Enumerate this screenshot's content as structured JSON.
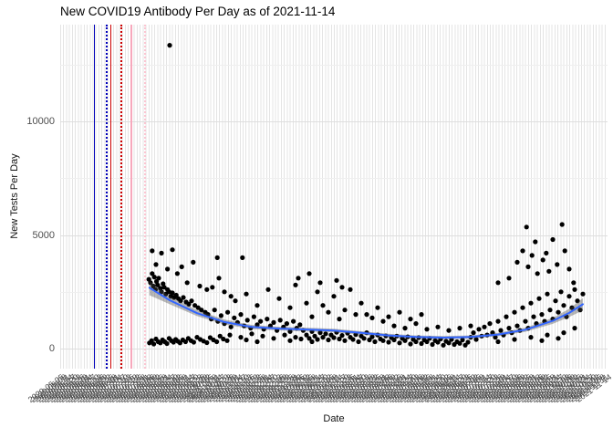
{
  "title": "New COVID19 Antibody Per Day as of 2021-11-14",
  "chart_data": {
    "type": "scatter",
    "title": "New COVID19 Antibody Per Day as of 2021-11-14",
    "xlabel": "Date",
    "ylabel": "New Tests Per Day",
    "grid": "on",
    "legend": "none",
    "point_color": "#000000",
    "smooth_color": "#3366ff",
    "ribbon_color": "rgba(70,70,70,0.38)",
    "y_ticks": [
      0,
      5000,
      10000
    ],
    "y_minor_ticks": [
      2500,
      7500,
      12500
    ],
    "ylim": [
      -620,
      14260
    ],
    "x_ticks": {
      "start": "2020-05-05",
      "end": "2021-11-14",
      "step_days": 3,
      "format": "YYYY-MM-DD"
    },
    "reference_lines": [
      {
        "name": "vline-blue-solid",
        "f": 0.0617,
        "color": "#0000bb",
        "style": "solid",
        "width": 1.5
      },
      {
        "name": "vline-blue-dotted",
        "f": 0.0833,
        "color": "#0000bb",
        "style": "dotted",
        "width": 2
      },
      {
        "name": "vline-red-solid",
        "f": 0.0917,
        "color": "#cc0000",
        "style": "solid",
        "width": 1.5
      },
      {
        "name": "vline-red-dotted",
        "f": 0.11,
        "color": "#cc0000",
        "style": "dotted",
        "width": 2
      },
      {
        "name": "vline-pink-solid",
        "f": 0.129,
        "color": "#f7a8bc",
        "style": "solid",
        "width": 2
      },
      {
        "name": "vline-pink-dotted",
        "f": 0.153,
        "color": "#fbc6d2",
        "style": "dotted",
        "width": 2
      }
    ],
    "smooth": [
      [
        0.163,
        2680
      ],
      [
        0.2,
        2130
      ],
      [
        0.25,
        1560
      ],
      [
        0.3,
        1170
      ],
      [
        0.35,
        950
      ],
      [
        0.4,
        880
      ],
      [
        0.45,
        840
      ],
      [
        0.5,
        790
      ],
      [
        0.55,
        690
      ],
      [
        0.6,
        580
      ],
      [
        0.65,
        510
      ],
      [
        0.7,
        480
      ],
      [
        0.75,
        510
      ],
      [
        0.8,
        620
      ],
      [
        0.85,
        830
      ],
      [
        0.9,
        1220
      ],
      [
        0.93,
        1570
      ],
      [
        0.955,
        1950
      ]
    ],
    "ribbon": [
      [
        0.163,
        2350,
        2980
      ],
      [
        0.2,
        1950,
        2300
      ],
      [
        0.25,
        1430,
        1690
      ],
      [
        0.3,
        1060,
        1280
      ],
      [
        0.35,
        860,
        1040
      ],
      [
        0.4,
        800,
        960
      ],
      [
        0.45,
        760,
        920
      ],
      [
        0.5,
        710,
        870
      ],
      [
        0.55,
        615,
        765
      ],
      [
        0.6,
        505,
        655
      ],
      [
        0.65,
        440,
        580
      ],
      [
        0.7,
        410,
        550
      ],
      [
        0.75,
        440,
        580
      ],
      [
        0.8,
        545,
        695
      ],
      [
        0.85,
        740,
        920
      ],
      [
        0.9,
        1090,
        1350
      ],
      [
        0.93,
        1390,
        1750
      ],
      [
        0.955,
        1680,
        2220
      ]
    ],
    "points": [
      [
        0.162,
        3050
      ],
      [
        0.165,
        2900
      ],
      [
        0.168,
        3300
      ],
      [
        0.17,
        2750
      ],
      [
        0.172,
        3150
      ],
      [
        0.174,
        2600
      ],
      [
        0.176,
        2950
      ],
      [
        0.178,
        2800
      ],
      [
        0.18,
        3100
      ],
      [
        0.183,
        2650
      ],
      [
        0.185,
        2500
      ],
      [
        0.188,
        2850
      ],
      [
        0.19,
        2700
      ],
      [
        0.193,
        2400
      ],
      [
        0.196,
        2600
      ],
      [
        0.199,
        2500
      ],
      [
        0.202,
        2300
      ],
      [
        0.205,
        2450
      ],
      [
        0.208,
        2250
      ],
      [
        0.212,
        2350
      ],
      [
        0.216,
        2200
      ],
      [
        0.22,
        2100
      ],
      [
        0.225,
        2250
      ],
      [
        0.23,
        2050
      ],
      [
        0.235,
        1950
      ],
      [
        0.24,
        2100
      ],
      [
        0.246,
        1900
      ],
      [
        0.252,
        1800
      ],
      [
        0.258,
        1700
      ],
      [
        0.265,
        1600
      ],
      [
        0.168,
        4300
      ],
      [
        0.175,
        3700
      ],
      [
        0.185,
        4200
      ],
      [
        0.196,
        3500
      ],
      [
        0.205,
        4350
      ],
      [
        0.214,
        3300
      ],
      [
        0.222,
        3600
      ],
      [
        0.232,
        2900
      ],
      [
        0.243,
        3800
      ],
      [
        0.255,
        2750
      ],
      [
        0.268,
        2600
      ],
      [
        0.278,
        2700
      ],
      [
        0.287,
        4000
      ],
      [
        0.29,
        3100
      ],
      [
        0.3,
        2500
      ],
      [
        0.312,
        2300
      ],
      [
        0.333,
        4000
      ],
      [
        0.163,
        250
      ],
      [
        0.167,
        350
      ],
      [
        0.171,
        200
      ],
      [
        0.175,
        420
      ],
      [
        0.179,
        300
      ],
      [
        0.183,
        250
      ],
      [
        0.187,
        380
      ],
      [
        0.191,
        300
      ],
      [
        0.195,
        220
      ],
      [
        0.199,
        450
      ],
      [
        0.203,
        350
      ],
      [
        0.207,
        280
      ],
      [
        0.211,
        400
      ],
      [
        0.215,
        320
      ],
      [
        0.219,
        250
      ],
      [
        0.224,
        380
      ],
      [
        0.229,
        300
      ],
      [
        0.234,
        450
      ],
      [
        0.239,
        350
      ],
      [
        0.244,
        280
      ],
      [
        0.25,
        500
      ],
      [
        0.256,
        400
      ],
      [
        0.262,
        330
      ],
      [
        0.268,
        260
      ],
      [
        0.274,
        480
      ],
      [
        0.28,
        380
      ],
      [
        0.286,
        300
      ],
      [
        0.292,
        550
      ],
      [
        0.298,
        420
      ],
      [
        0.305,
        350
      ],
      [
        0.2,
        13350
      ],
      [
        0.27,
        1500
      ],
      [
        0.276,
        1300
      ],
      [
        0.282,
        1700
      ],
      [
        0.288,
        1200
      ],
      [
        0.294,
        1450
      ],
      [
        0.3,
        1100
      ],
      [
        0.306,
        1600
      ],
      [
        0.312,
        950
      ],
      [
        0.318,
        1350
      ],
      [
        0.324,
        1150
      ],
      [
        0.33,
        1500
      ],
      [
        0.336,
        1000
      ],
      [
        0.342,
        1250
      ],
      [
        0.348,
        900
      ],
      [
        0.354,
        1400
      ],
      [
        0.36,
        1050
      ],
      [
        0.366,
        1200
      ],
      [
        0.372,
        850
      ],
      [
        0.378,
        1300
      ],
      [
        0.384,
        1000
      ],
      [
        0.39,
        1150
      ],
      [
        0.396,
        800
      ],
      [
        0.402,
        1250
      ],
      [
        0.408,
        950
      ],
      [
        0.414,
        1100
      ],
      [
        0.42,
        750
      ],
      [
        0.426,
        1200
      ],
      [
        0.432,
        900
      ],
      [
        0.438,
        1050
      ],
      [
        0.444,
        800
      ],
      [
        0.32,
        2100
      ],
      [
        0.34,
        2400
      ],
      [
        0.36,
        1900
      ],
      [
        0.38,
        2600
      ],
      [
        0.4,
        2200
      ],
      [
        0.42,
        1800
      ],
      [
        0.43,
        2800
      ],
      [
        0.45,
        2000
      ],
      [
        0.47,
        2500
      ],
      [
        0.48,
        1900
      ],
      [
        0.5,
        2300
      ],
      [
        0.52,
        1700
      ],
      [
        0.53,
        2600
      ],
      [
        0.55,
        2000
      ],
      [
        0.56,
        1500
      ],
      [
        0.58,
        1800
      ],
      [
        0.6,
        1400
      ],
      [
        0.62,
        1600
      ],
      [
        0.64,
        1300
      ],
      [
        0.66,
        1500
      ],
      [
        0.435,
        3100
      ],
      [
        0.455,
        3300
      ],
      [
        0.475,
        2900
      ],
      [
        0.505,
        3000
      ],
      [
        0.515,
        2700
      ],
      [
        0.31,
        600
      ],
      [
        0.33,
        500
      ],
      [
        0.35,
        650
      ],
      [
        0.37,
        550
      ],
      [
        0.39,
        450
      ],
      [
        0.41,
        600
      ],
      [
        0.43,
        500
      ],
      [
        0.34,
        380
      ],
      [
        0.36,
        300
      ],
      [
        0.42,
        350
      ],
      [
        0.44,
        420
      ],
      [
        0.46,
        300
      ],
      [
        0.46,
        1400
      ],
      [
        0.49,
        1600
      ],
      [
        0.51,
        1300
      ],
      [
        0.54,
        1500
      ],
      [
        0.57,
        1350
      ],
      [
        0.59,
        1200
      ],
      [
        0.45,
        600
      ],
      [
        0.455,
        450
      ],
      [
        0.46,
        750
      ],
      [
        0.465,
        550
      ],
      [
        0.47,
        400
      ],
      [
        0.475,
        700
      ],
      [
        0.48,
        500
      ],
      [
        0.485,
        650
      ],
      [
        0.49,
        380
      ],
      [
        0.495,
        600
      ],
      [
        0.5,
        480
      ],
      [
        0.505,
        720
      ],
      [
        0.51,
        420
      ],
      [
        0.515,
        580
      ],
      [
        0.52,
        350
      ],
      [
        0.525,
        680
      ],
      [
        0.53,
        500
      ],
      [
        0.535,
        400
      ],
      [
        0.54,
        620
      ],
      [
        0.545,
        300
      ],
      [
        0.55,
        550
      ],
      [
        0.555,
        450
      ],
      [
        0.56,
        700
      ],
      [
        0.565,
        380
      ],
      [
        0.57,
        520
      ],
      [
        0.575,
        300
      ],
      [
        0.58,
        600
      ],
      [
        0.585,
        420
      ],
      [
        0.59,
        350
      ],
      [
        0.595,
        560
      ],
      [
        0.6,
        280
      ],
      [
        0.605,
        480
      ],
      [
        0.61,
        380
      ],
      [
        0.615,
        550
      ],
      [
        0.62,
        250
      ],
      [
        0.625,
        450
      ],
      [
        0.63,
        350
      ],
      [
        0.635,
        520
      ],
      [
        0.64,
        200
      ],
      [
        0.645,
        400
      ],
      [
        0.65,
        300
      ],
      [
        0.655,
        480
      ],
      [
        0.66,
        220
      ],
      [
        0.665,
        380
      ],
      [
        0.67,
        300
      ],
      [
        0.675,
        450
      ],
      [
        0.68,
        180
      ],
      [
        0.685,
        350
      ],
      [
        0.69,
        280
      ],
      [
        0.695,
        420
      ],
      [
        0.7,
        150
      ],
      [
        0.705,
        320
      ],
      [
        0.71,
        250
      ],
      [
        0.715,
        400
      ],
      [
        0.72,
        180
      ],
      [
        0.725,
        300
      ],
      [
        0.73,
        230
      ],
      [
        0.735,
        380
      ],
      [
        0.74,
        150
      ],
      [
        0.745,
        280
      ],
      [
        0.61,
        1000
      ],
      [
        0.63,
        900
      ],
      [
        0.65,
        1100
      ],
      [
        0.67,
        850
      ],
      [
        0.69,
        950
      ],
      [
        0.71,
        800
      ],
      [
        0.73,
        900
      ],
      [
        0.75,
        1000
      ],
      [
        0.75,
        500
      ],
      [
        0.755,
        700
      ],
      [
        0.76,
        400
      ],
      [
        0.765,
        850
      ],
      [
        0.77,
        550
      ],
      [
        0.775,
        950
      ],
      [
        0.78,
        600
      ],
      [
        0.785,
        1100
      ],
      [
        0.79,
        700
      ],
      [
        0.795,
        500
      ],
      [
        0.8,
        1200
      ],
      [
        0.805,
        800
      ],
      [
        0.81,
        600
      ],
      [
        0.815,
        1400
      ],
      [
        0.82,
        900
      ],
      [
        0.825,
        700
      ],
      [
        0.83,
        1600
      ],
      [
        0.835,
        1000
      ],
      [
        0.84,
        800
      ],
      [
        0.845,
        1800
      ],
      [
        0.85,
        1200
      ],
      [
        0.855,
        900
      ],
      [
        0.86,
        2000
      ],
      [
        0.865,
        1400
      ],
      [
        0.87,
        1100
      ],
      [
        0.875,
        2200
      ],
      [
        0.88,
        1500
      ],
      [
        0.885,
        1200
      ],
      [
        0.89,
        2400
      ],
      [
        0.895,
        1700
      ],
      [
        0.9,
        1300
      ],
      [
        0.905,
        2100
      ],
      [
        0.91,
        1600
      ],
      [
        0.915,
        2500
      ],
      [
        0.92,
        1900
      ],
      [
        0.925,
        1400
      ],
      [
        0.93,
        2300
      ],
      [
        0.935,
        1800
      ],
      [
        0.94,
        2600
      ],
      [
        0.945,
        2100
      ],
      [
        0.95,
        1700
      ],
      [
        0.955,
        2400
      ],
      [
        0.8,
        300
      ],
      [
        0.83,
        400
      ],
      [
        0.86,
        500
      ],
      [
        0.89,
        600
      ],
      [
        0.92,
        700
      ],
      [
        0.94,
        900
      ],
      [
        0.88,
        350
      ],
      [
        0.91,
        450
      ],
      [
        0.8,
        2900
      ],
      [
        0.82,
        3100
      ],
      [
        0.835,
        3800
      ],
      [
        0.845,
        4300
      ],
      [
        0.852,
        5350
      ],
      [
        0.855,
        3600
      ],
      [
        0.862,
        4100
      ],
      [
        0.868,
        4700
      ],
      [
        0.872,
        3300
      ],
      [
        0.882,
        3900
      ],
      [
        0.888,
        4200
      ],
      [
        0.893,
        3400
      ],
      [
        0.9,
        4800
      ],
      [
        0.908,
        3700
      ],
      [
        0.917,
        5460
      ],
      [
        0.922,
        4300
      ],
      [
        0.93,
        3500
      ],
      [
        0.938,
        2900
      ]
    ]
  }
}
